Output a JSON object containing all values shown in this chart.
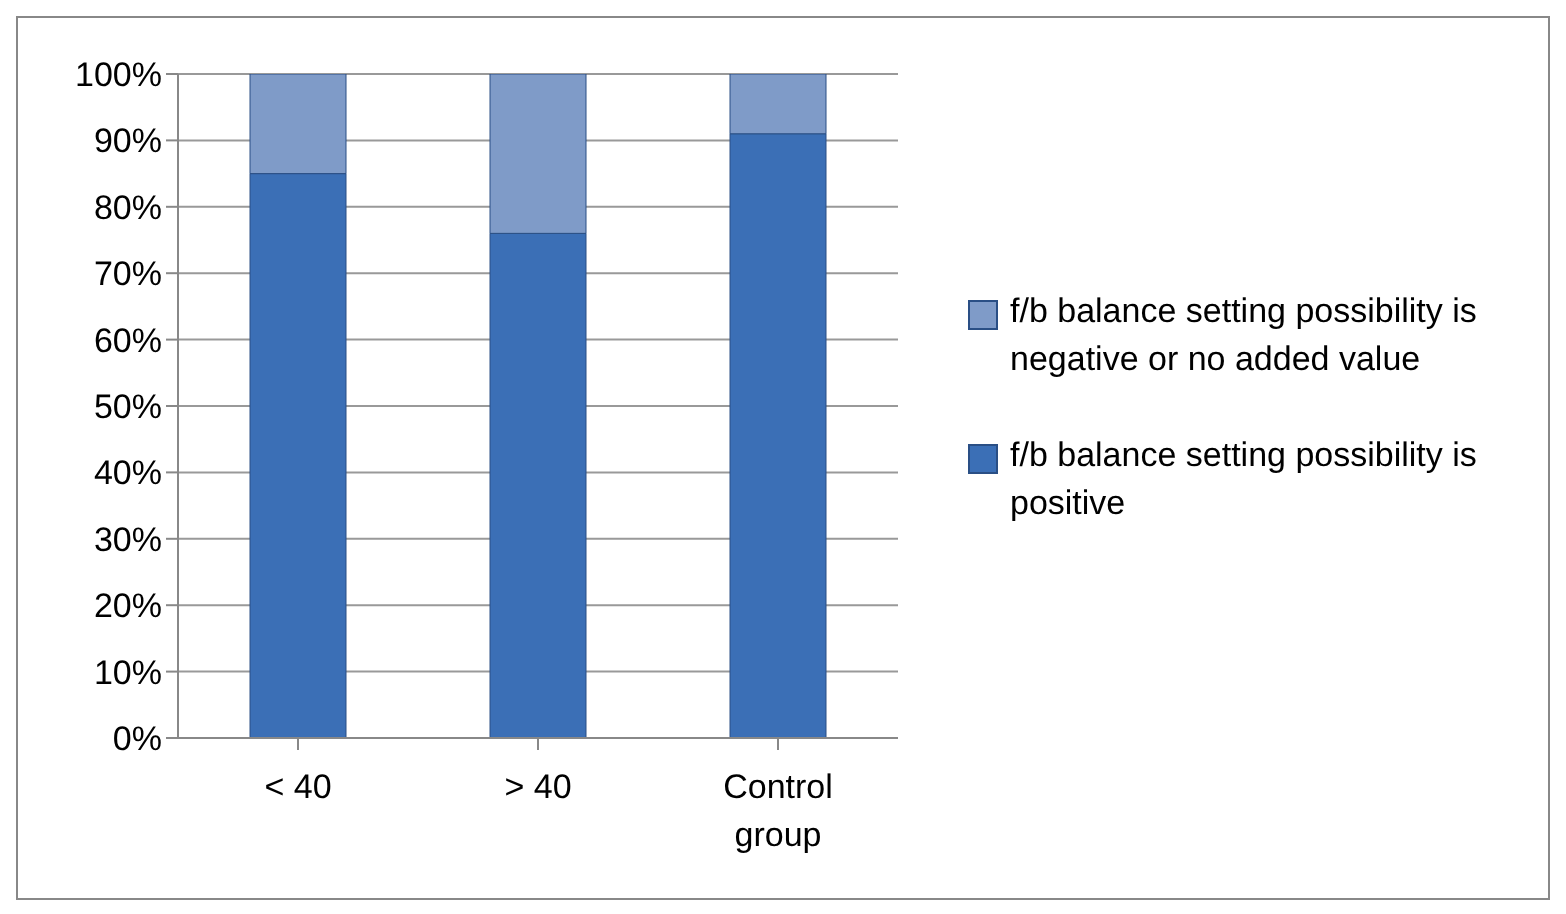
{
  "chart_data": {
    "type": "bar",
    "stacked": true,
    "categories": [
      "< 40",
      "> 40",
      "Control group"
    ],
    "series": [
      {
        "name": "f/b balance setting possibility is positive",
        "color": "#3b6fb6",
        "values": [
          85,
          76,
          91
        ]
      },
      {
        "name": "f/b balance setting possibility is negative or no added value",
        "color": "#7f9bc8",
        "values": [
          15,
          24,
          9
        ]
      }
    ],
    "ylim": [
      0,
      100
    ],
    "yticks": [
      {
        "value": 0,
        "label": "0%"
      },
      {
        "value": 10,
        "label": "10%"
      },
      {
        "value": 20,
        "label": "20%"
      },
      {
        "value": 30,
        "label": "30%"
      },
      {
        "value": 40,
        "label": "40%"
      },
      {
        "value": 50,
        "label": "50%"
      },
      {
        "value": 60,
        "label": "60%"
      },
      {
        "value": 70,
        "label": "70%"
      },
      {
        "value": 80,
        "label": "80%"
      },
      {
        "value": 90,
        "label": "90%"
      },
      {
        "value": 100,
        "label": "100%"
      }
    ],
    "grid": "y",
    "legend": "right"
  }
}
